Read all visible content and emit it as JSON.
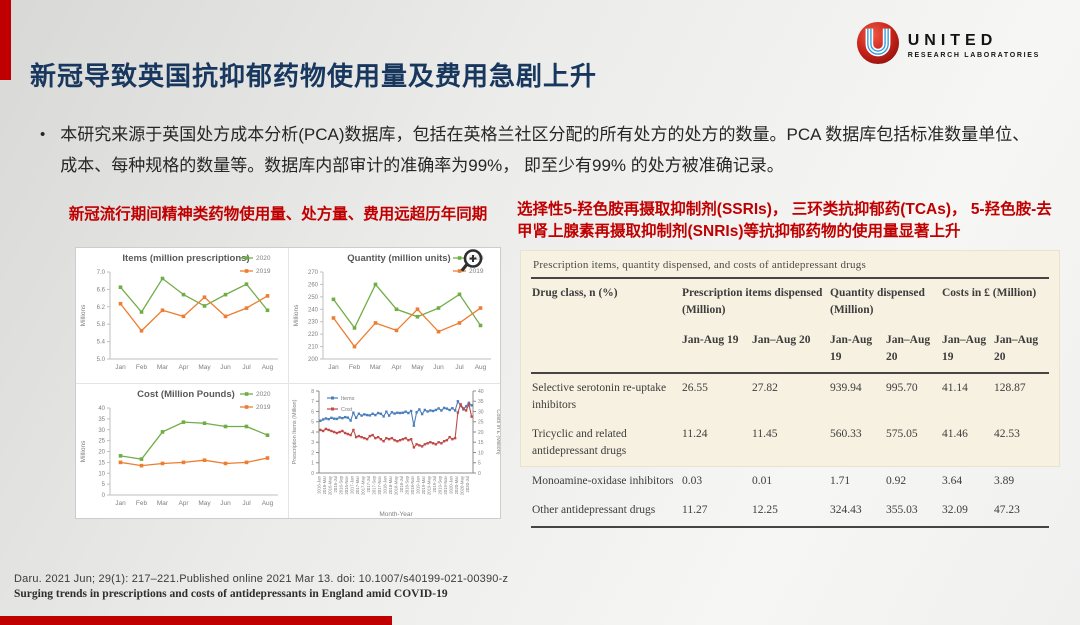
{
  "header": {
    "title": "新冠导致英国抗抑郁药物使用量及费用急剧上升"
  },
  "logo": {
    "name": "UNITED",
    "subtitle": "RESEARCH LABORATORIES"
  },
  "body": {
    "bullet_text": "本研究来源于英国处方成本分析(PCA)数据库，包括在英格兰社区分配的所有处方的处方的数量。PCA 数据库包括标准数量单位、成本、每种规格的数量等。数据库内部审计的准确率为99%， 即至少有99% 的处方被准确记录。"
  },
  "sections": {
    "left_heading": "新冠流行期间精神类药物使用量、处方量、费用远超历年同期",
    "right_heading": "选择性5-羟色胺再摄取抑制剂(SSRIs)， 三环类抗抑郁药(TCAs)， 5-羟色胺-去甲肾上腺素再摄取抑制剂(SNRIs)等抗抑郁药物的使用量显著上升"
  },
  "icons": {
    "magnifier": "magnifier-zoom",
    "logo_mark": "united-u-sphere"
  },
  "colors": {
    "accent_red": "#c00000",
    "title_navy": "#18375e",
    "series_2020": "#70ad47",
    "series_2019": "#ed7d31",
    "series_items": "#4a7ebb",
    "series_cost": "#be4b48",
    "table_bg": "#f7f1e1"
  },
  "table": {
    "caption": "Prescription items, quantity dispensed, and costs of antidepressant drugs",
    "col_groups": [
      "Drug class, n (%)",
      "Prescription items dispensed (Million)",
      "Quantity dispensed (Million)",
      "Costs in £ (Million)"
    ],
    "sub_headers": [
      "Jan-Aug 19",
      "Jan–Aug 20",
      "Jan-Aug 19",
      "Jan–Aug 20",
      "Jan–Aug 19",
      "Jan–Aug 20"
    ],
    "rows": [
      {
        "drug_class": "Selective serotonin re-uptake inhibitors",
        "values": [
          "26.55",
          "27.82",
          "939.94",
          "995.70",
          "41.14",
          "128.87"
        ]
      },
      {
        "drug_class": "Tricyclic and related antidepressant drugs",
        "values": [
          "11.24",
          "11.45",
          "560.33",
          "575.05",
          "41.46",
          "42.53"
        ]
      },
      {
        "drug_class": "Monoamine-oxidase inhibitors",
        "values": [
          "0.03",
          "0.01",
          "1.71",
          "0.92",
          "3.64",
          "3.89"
        ]
      },
      {
        "drug_class": "Other antidepressant drugs",
        "values": [
          "11.27",
          "12.25",
          "324.43",
          "355.03",
          "32.09",
          "47.23"
        ]
      }
    ]
  },
  "footer": {
    "citation_line1": "Daru. 2021 Jun; 29(1): 217–221.Published online 2021 Mar 13. doi: 10.1007/s40199-021-00390-z",
    "citation_line2": "Surging trends in prescriptions and costs of antidepressants in England amid COVID-19"
  },
  "chart_data": [
    {
      "type": "line",
      "title": "Items (million prescriptions)",
      "ylabel": "Millions",
      "categories": [
        "Jan",
        "Feb",
        "Mar",
        "Apr",
        "May",
        "Jun",
        "Jul",
        "Aug"
      ],
      "ylim": [
        5.0,
        7.0
      ],
      "yticks": [
        "5.0",
        "5.4",
        "5.8",
        "6.2",
        "6.6",
        "7.0"
      ],
      "legend": "top-right",
      "series": [
        {
          "name": "2020",
          "color": "#70ad47",
          "values": [
            6.65,
            6.08,
            6.85,
            6.48,
            6.22,
            6.48,
            6.72,
            6.12
          ]
        },
        {
          "name": "2019",
          "color": "#ed7d31",
          "values": [
            6.27,
            5.65,
            6.12,
            5.98,
            6.42,
            5.98,
            6.17,
            6.45
          ]
        }
      ]
    },
    {
      "type": "line",
      "title": "Quantity (million units)",
      "ylabel": "Millions",
      "categories": [
        "Jan",
        "Feb",
        "Mar",
        "Apr",
        "May",
        "Jun",
        "Jul",
        "Aug"
      ],
      "ylim": [
        200,
        270
      ],
      "yticks": [
        "200",
        "210",
        "220",
        "230",
        "240",
        "250",
        "260",
        "270"
      ],
      "legend": "top-right",
      "series": [
        {
          "name": "2020",
          "color": "#70ad47",
          "values": [
            248,
            225,
            260,
            240,
            234,
            241,
            252,
            227
          ]
        },
        {
          "name": "2019",
          "color": "#ed7d31",
          "values": [
            233,
            210,
            229,
            223,
            240,
            222,
            229,
            241
          ]
        }
      ]
    },
    {
      "type": "line",
      "title": "Cost (Million Pounds)",
      "ylabel": "Millions",
      "categories": [
        "Jan",
        "Feb",
        "Mar",
        "Apr",
        "May",
        "Jun",
        "Jul",
        "Aug"
      ],
      "ylim": [
        0,
        40
      ],
      "yticks": [
        "0",
        "5",
        "10",
        "15",
        "20",
        "25",
        "30",
        "35",
        "40"
      ],
      "legend": "top-right",
      "series": [
        {
          "name": "2020",
          "color": "#70ad47",
          "values": [
            18,
            16.5,
            29,
            33.5,
            33,
            31.5,
            31.5,
            27.5
          ]
        },
        {
          "name": "2019",
          "color": "#ed7d31",
          "values": [
            15,
            13.5,
            14.5,
            15,
            16,
            14.5,
            15,
            17
          ]
        }
      ]
    },
    {
      "type": "line-dual",
      "title": "",
      "xlabel": "Month-Year",
      "left_axis": {
        "label": "Prescription Items (Million)",
        "lim": [
          0,
          8
        ],
        "ticks": [
          "0",
          "1",
          "2",
          "3",
          "4",
          "5",
          "6",
          "7",
          "8"
        ]
      },
      "right_axis": {
        "label": "Costs in £ (Million)",
        "lim": [
          0,
          40
        ],
        "ticks": [
          "0",
          "5",
          "10",
          "15",
          "20",
          "25",
          "30",
          "35",
          "40"
        ]
      },
      "x_tick_labels": [
        "2016-Jan",
        "2016-Mar",
        "2016-May",
        "2016-Jul",
        "2016-Sep",
        "2016-Nov",
        "2017-Jan",
        "2017-Mar",
        "2017-May",
        "2017-Jul",
        "2017-Sep",
        "2017-Nov",
        "2018-Jan",
        "2018-Mar",
        "2018-May",
        "2018-Jul",
        "2018-Sep",
        "2018-Nov",
        "2019-Jan",
        "2019-Mar",
        "2019-May",
        "2019-Jul",
        "2019-Sep",
        "2019-Nov",
        "2020-Jan",
        "2020-Mar",
        "2020-May",
        "2020-Jul"
      ],
      "legend": "top-left",
      "series": [
        {
          "name": "Items",
          "axis": "left",
          "color": "#4a7ebb",
          "values": [
            5.1,
            5.22,
            5.32,
            5.25,
            5.38,
            5.3,
            5.28,
            5.42,
            5.35,
            5.45,
            5.4,
            5.12,
            5.88,
            5.38,
            5.78,
            5.6,
            5.72,
            5.65,
            5.62,
            5.78,
            5.65,
            5.85,
            5.78,
            5.52,
            5.98,
            5.6,
            5.92,
            5.8,
            5.88,
            5.85,
            5.88,
            5.98,
            5.85,
            6.05,
            4.62,
            5.92,
            6.2,
            5.75,
            6.15,
            6.0,
            6.1,
            6.05,
            6.15,
            6.3,
            6.1,
            6.35,
            6.28,
            6.15,
            6.32,
            6.1,
            7.0,
            6.55,
            6.2,
            6.5,
            6.85,
            6.6
          ]
        },
        {
          "name": "Cost",
          "axis": "right",
          "color": "#be4b48",
          "values": [
            21.0,
            20.5,
            21.5,
            21.0,
            20.5,
            20.0,
            19.5,
            20.0,
            20.5,
            19.5,
            19.0,
            18.5,
            21.0,
            17.5,
            18.0,
            17.5,
            17.0,
            16.5,
            18.0,
            18.5,
            17.0,
            17.5,
            16.5,
            15.5,
            17.0,
            16.5,
            17.0,
            16.0,
            15.5,
            16.0,
            16.5,
            17.0,
            16.0,
            16.5,
            12.5,
            14.0,
            13.5,
            13.0,
            14.0,
            14.5,
            15.0,
            14.5,
            14.0,
            15.0,
            14.5,
            15.5,
            16.0,
            17.5,
            16.5,
            17.0,
            29.5,
            33.5,
            31.5,
            30.5,
            33.5,
            27.5
          ]
        }
      ]
    }
  ]
}
